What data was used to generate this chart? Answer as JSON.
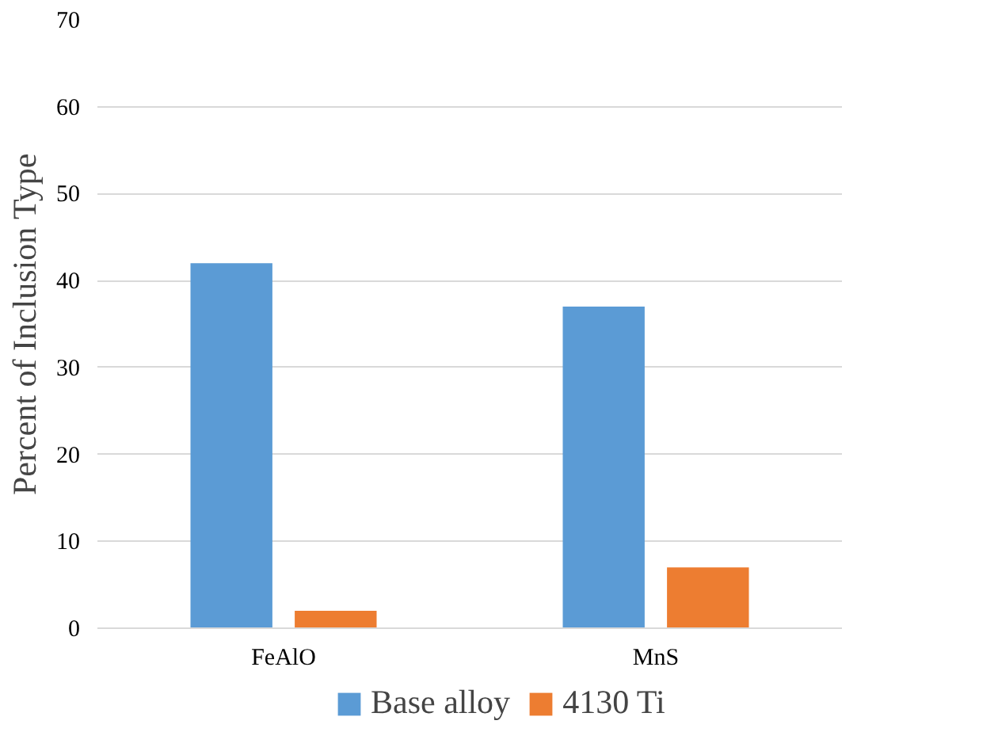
{
  "chart_data": {
    "type": "bar",
    "ylabel": "Percent of Inclusion Type",
    "categories": [
      "FeAlO",
      "MnS"
    ],
    "series": [
      {
        "name": "Base alloy",
        "color": "#5b9bd5",
        "values": [
          42,
          37
        ]
      },
      {
        "name": "4130 Ti",
        "color": "#ed7d31",
        "values": [
          2,
          7
        ]
      }
    ],
    "ylim": [
      0,
      70
    ],
    "yticks": [
      0,
      10,
      20,
      30,
      40,
      50,
      60,
      70
    ],
    "grid": "y",
    "legend": "bottom"
  }
}
